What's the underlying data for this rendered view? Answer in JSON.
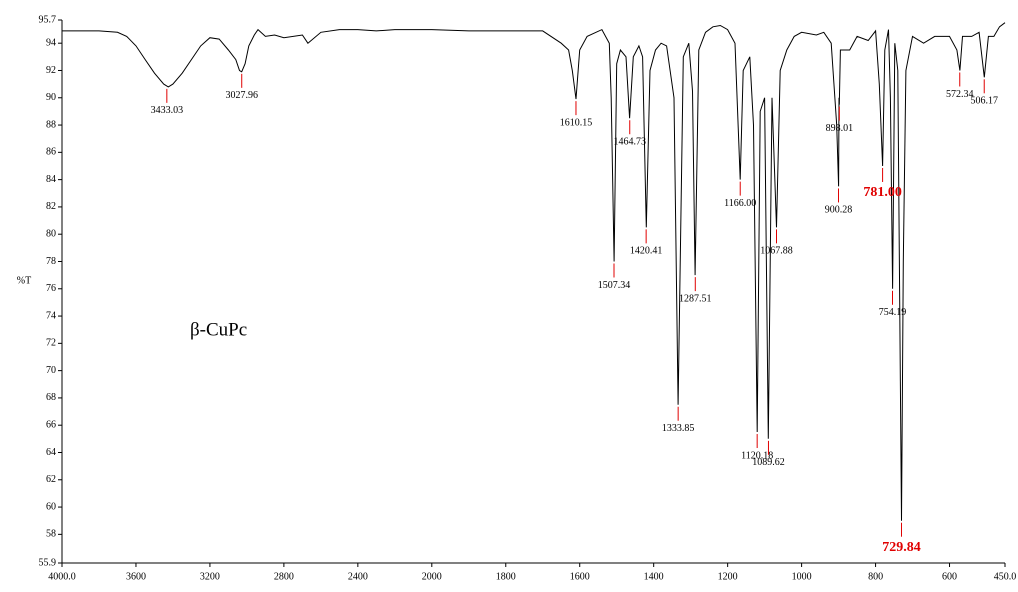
{
  "chart_data": {
    "type": "line",
    "ylabel": "%T",
    "annotation": "β-CuPc",
    "xlim": [
      4000,
      450
    ],
    "xbreak": 2000,
    "ylim": [
      55.9,
      95.7
    ],
    "color": "#000000",
    "xticks": [
      {
        "value": 4000,
        "label": "4000.0"
      },
      3600,
      3200,
      2800,
      2400,
      2000,
      1800,
      1600,
      1400,
      1200,
      1000,
      800,
      600,
      {
        "value": 450,
        "label": "450.0"
      }
    ],
    "yticks": [
      95.7,
      94,
      92,
      90,
      88,
      86,
      84,
      82,
      80,
      78,
      76,
      74,
      72,
      70,
      68,
      66,
      64,
      62,
      60,
      58,
      55.9
    ],
    "x": [
      4000,
      3800,
      3700,
      3650,
      3600,
      3550,
      3500,
      3450,
      3425,
      3400,
      3350,
      3300,
      3250,
      3200,
      3150,
      3100,
      3060,
      3040,
      3028,
      3010,
      2990,
      2960,
      2940,
      2900,
      2850,
      2800,
      2700,
      2670,
      2600,
      2500,
      2400,
      2300,
      2200,
      2100,
      2000,
      1900,
      1800,
      1700,
      1650,
      1630,
      1620,
      1610,
      1600,
      1580,
      1540,
      1520,
      1515,
      1507,
      1500,
      1490,
      1475,
      1465,
      1455,
      1440,
      1430,
      1420,
      1410,
      1395,
      1380,
      1365,
      1345,
      1334,
      1320,
      1305,
      1295,
      1288,
      1278,
      1260,
      1240,
      1220,
      1200,
      1180,
      1166,
      1158,
      1140,
      1130,
      1120,
      1112,
      1100,
      1090,
      1080,
      1068,
      1058,
      1040,
      1020,
      1000,
      960,
      940,
      920,
      905,
      900,
      899,
      898,
      895,
      870,
      850,
      820,
      800,
      790,
      781,
      775,
      765,
      760,
      754,
      748,
      740,
      730,
      725,
      718,
      700,
      670,
      640,
      600,
      580,
      572,
      565,
      540,
      520,
      506,
      495,
      480,
      465,
      450
    ],
    "values": [
      94.9,
      94.9,
      94.8,
      94.5,
      93.8,
      92.8,
      91.8,
      91.0,
      90.8,
      91.0,
      91.8,
      92.8,
      93.8,
      94.4,
      94.3,
      93.5,
      92.8,
      92.0,
      91.9,
      92.5,
      93.8,
      94.6,
      95.0,
      94.5,
      94.6,
      94.4,
      94.6,
      94.0,
      94.8,
      95.0,
      95.0,
      94.9,
      95.0,
      95.0,
      95.0,
      94.9,
      94.9,
      94.9,
      94.0,
      93.5,
      92.0,
      89.9,
      93.5,
      94.5,
      95.0,
      94.0,
      90.0,
      78.0,
      92.5,
      93.5,
      93.0,
      88.5,
      93.0,
      93.8,
      93.0,
      80.5,
      92.0,
      93.5,
      94.0,
      93.8,
      90.0,
      67.5,
      93.0,
      94.0,
      90.5,
      77.0,
      93.5,
      94.8,
      95.2,
      95.3,
      95.0,
      94.0,
      84.0,
      92.0,
      93.0,
      88.0,
      65.5,
      89.0,
      90.0,
      65.0,
      90.0,
      80.5,
      92.0,
      93.5,
      94.5,
      94.8,
      94.6,
      94.8,
      94.0,
      88.0,
      83.5,
      90.0,
      89.5,
      93.5,
      93.5,
      94.5,
      94.2,
      94.9,
      91.0,
      85.0,
      93.5,
      95.0,
      90.0,
      76.0,
      94.0,
      92.0,
      59.0,
      78.0,
      92.0,
      94.5,
      94.0,
      94.5,
      94.5,
      93.5,
      92.0,
      94.5,
      94.5,
      94.8,
      91.5,
      94.5,
      94.5,
      95.2,
      95.5
    ],
    "peaks": [
      {
        "value": 3433.03,
        "y": 90.8,
        "label": "3433.03"
      },
      {
        "value": 3027.96,
        "y": 91.9,
        "label": "3027.96"
      },
      {
        "value": 1610.15,
        "y": 89.9,
        "label": "1610.15"
      },
      {
        "value": 1507.34,
        "y": 78.0,
        "label": "1507.34"
      },
      {
        "value": 1464.73,
        "y": 88.5,
        "label": "1464.73"
      },
      {
        "value": 1420.41,
        "y": 80.5,
        "label": "1420.41"
      },
      {
        "value": 1333.85,
        "y": 67.5,
        "label": "1333.85"
      },
      {
        "value": 1287.51,
        "y": 77.0,
        "label": "1287.51"
      },
      {
        "value": 1166,
        "y": 84.0,
        "label": "1166.00"
      },
      {
        "value": 1120.18,
        "y": 65.5,
        "label": "1120.18"
      },
      {
        "value": 1089.62,
        "y": 65.0,
        "label": "1089.62"
      },
      {
        "value": 1067.88,
        "y": 80.5,
        "label": "1067.88"
      },
      {
        "value": 900.28,
        "y": 83.5,
        "label": "900.28"
      },
      {
        "value": 898.01,
        "y": 89.5,
        "label": "898.01"
      },
      {
        "value": 781,
        "y": 85.0,
        "label": "781.00",
        "emphasis": true
      },
      {
        "value": 754.19,
        "y": 76.0,
        "label": "754.19"
      },
      {
        "value": 729.84,
        "y": 59.0,
        "label": "729.84",
        "emphasis": true
      },
      {
        "value": 572.34,
        "y": 92.0,
        "label": "572.34"
      },
      {
        "value": 506.17,
        "y": 91.5,
        "label": "506.17"
      }
    ],
    "peak_color": "#e00000"
  }
}
